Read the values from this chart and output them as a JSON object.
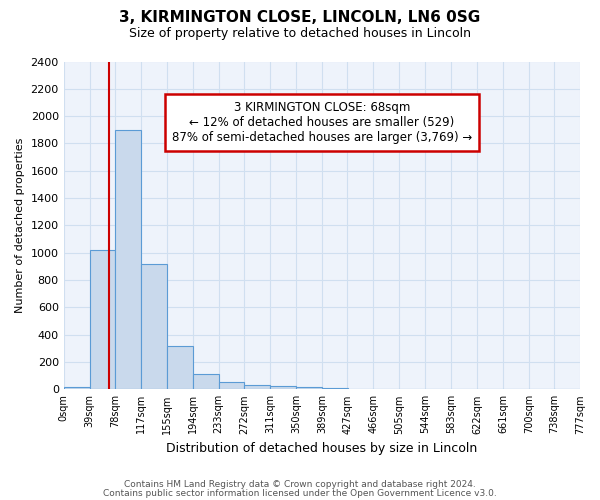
{
  "title1": "3, KIRMINGTON CLOSE, LINCOLN, LN6 0SG",
  "title2": "Size of property relative to detached houses in Lincoln",
  "xlabel": "Distribution of detached houses by size in Lincoln",
  "ylabel": "Number of detached properties",
  "bins": [
    0,
    39,
    78,
    117,
    155,
    194,
    233,
    272,
    311,
    350,
    389,
    427,
    466,
    505,
    544,
    583,
    622,
    661,
    700,
    738,
    777
  ],
  "counts": [
    20,
    1020,
    1900,
    920,
    320,
    110,
    55,
    35,
    25,
    15,
    10,
    0,
    0,
    0,
    0,
    0,
    0,
    0,
    0,
    0
  ],
  "bar_color": "#c9d9ec",
  "bar_edge_color": "#5b9bd5",
  "property_size": 68,
  "vline_color": "#cc0000",
  "annotation_line1": "3 KIRMINGTON CLOSE: 68sqm",
  "annotation_line2": "← 12% of detached houses are smaller (529)",
  "annotation_line3": "87% of semi-detached houses are larger (3,769) →",
  "annotation_box_color": "#cc0000",
  "annotation_text_color": "#000000",
  "ylim": [
    0,
    2400
  ],
  "yticks": [
    0,
    200,
    400,
    600,
    800,
    1000,
    1200,
    1400,
    1600,
    1800,
    2000,
    2200,
    2400
  ],
  "tick_labels": [
    "0sqm",
    "39sqm",
    "78sqm",
    "117sqm",
    "155sqm",
    "194sqm",
    "233sqm",
    "272sqm",
    "311sqm",
    "350sqm",
    "389sqm",
    "427sqm",
    "466sqm",
    "505sqm",
    "544sqm",
    "583sqm",
    "622sqm",
    "661sqm",
    "700sqm",
    "738sqm",
    "777sqm"
  ],
  "footer1": "Contains HM Land Registry data © Crown copyright and database right 2024.",
  "footer2": "Contains public sector information licensed under the Open Government Licence v3.0.",
  "grid_color": "#d0dff0",
  "bg_color": "#eef3fb",
  "fig_bg_color": "#ffffff"
}
